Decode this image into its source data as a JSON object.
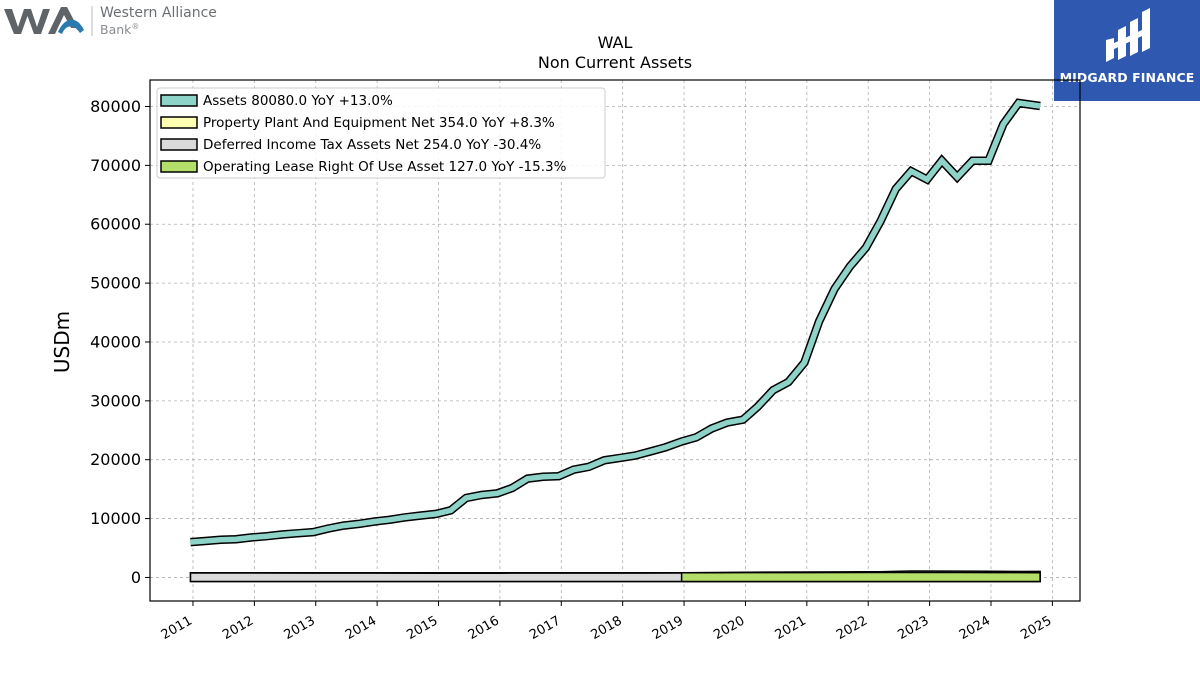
{
  "header": {
    "company_line1": "Western Alliance",
    "company_line2": "Bank",
    "company_mark": "®"
  },
  "badge": {
    "text": "MIDGARD FINANCE",
    "color": "#2f58b0"
  },
  "chart_data": {
    "type": "line",
    "title": "WAL",
    "subtitle": "Non Current  Assets",
    "ylabel": "USDm",
    "xlabel": "",
    "ylim": [
      -4000,
      84500
    ],
    "xlim": [
      2010.3,
      2025.45
    ],
    "yticks": [
      0,
      10000,
      20000,
      30000,
      40000,
      50000,
      60000,
      70000,
      80000
    ],
    "xticks": [
      2011,
      2012,
      2013,
      2014,
      2015,
      2016,
      2017,
      2018,
      2019,
      2020,
      2021,
      2022,
      2023,
      2024,
      2025
    ],
    "grid": true,
    "legend_position": "top-left",
    "series": [
      {
        "name": "Assets",
        "legend": "Assets  80080.0 YoY +13.0%",
        "color": "#8dd3c7",
        "points": [
          [
            2010.96,
            6000
          ],
          [
            2011.2,
            6200
          ],
          [
            2011.45,
            6400
          ],
          [
            2011.7,
            6500
          ],
          [
            2011.96,
            6800
          ],
          [
            2012.2,
            7000
          ],
          [
            2012.45,
            7300
          ],
          [
            2012.7,
            7500
          ],
          [
            2012.96,
            7700
          ],
          [
            2013.2,
            8300
          ],
          [
            2013.45,
            8800
          ],
          [
            2013.7,
            9100
          ],
          [
            2013.96,
            9500
          ],
          [
            2014.2,
            9800
          ],
          [
            2014.45,
            10200
          ],
          [
            2014.7,
            10500
          ],
          [
            2014.96,
            10800
          ],
          [
            2015.2,
            11400
          ],
          [
            2015.45,
            13500
          ],
          [
            2015.7,
            14000
          ],
          [
            2015.96,
            14300
          ],
          [
            2016.2,
            15200
          ],
          [
            2016.45,
            16800
          ],
          [
            2016.7,
            17100
          ],
          [
            2016.96,
            17200
          ],
          [
            2017.2,
            18300
          ],
          [
            2017.45,
            18800
          ],
          [
            2017.7,
            19900
          ],
          [
            2017.96,
            20300
          ],
          [
            2018.2,
            20700
          ],
          [
            2018.45,
            21400
          ],
          [
            2018.7,
            22100
          ],
          [
            2018.96,
            23100
          ],
          [
            2019.2,
            23800
          ],
          [
            2019.45,
            25300
          ],
          [
            2019.7,
            26300
          ],
          [
            2019.96,
            26800
          ],
          [
            2020.2,
            29000
          ],
          [
            2020.45,
            31800
          ],
          [
            2020.7,
            33200
          ],
          [
            2020.96,
            36500
          ],
          [
            2021.2,
            43500
          ],
          [
            2021.45,
            49000
          ],
          [
            2021.7,
            52800
          ],
          [
            2021.96,
            56000
          ],
          [
            2022.2,
            60500
          ],
          [
            2022.45,
            66000
          ],
          [
            2022.7,
            69000
          ],
          [
            2022.96,
            67600
          ],
          [
            2023.2,
            70800
          ],
          [
            2023.45,
            68000
          ],
          [
            2023.7,
            70800
          ],
          [
            2023.96,
            70800
          ],
          [
            2024.2,
            77000
          ],
          [
            2024.45,
            80600
          ],
          [
            2024.8,
            80080
          ]
        ]
      },
      {
        "name": "Property Plant And Equipment Net",
        "legend": "Property Plant And Equipment Net  354.0 YoY +8.3%",
        "color": "#ffffb3",
        "points": [
          [
            2010.96,
            110
          ],
          [
            2012.0,
            112
          ],
          [
            2013.0,
            115
          ],
          [
            2014.0,
            117
          ],
          [
            2015.0,
            120
          ],
          [
            2016.0,
            122
          ],
          [
            2017.0,
            125
          ],
          [
            2018.0,
            128
          ],
          [
            2018.96,
            130
          ],
          [
            2020.0,
            210
          ],
          [
            2021.0,
            240
          ],
          [
            2022.0,
            280
          ],
          [
            2022.7,
            320
          ],
          [
            2023.5,
            327
          ],
          [
            2024.0,
            335
          ],
          [
            2024.8,
            354
          ]
        ]
      },
      {
        "name": "Deferred Income Tax Assets Net",
        "legend": "Deferred Income Tax Assets Net  254.0 YoY -30.4%",
        "color": "#d9d9d9",
        "points": [
          [
            2010.96,
            80
          ],
          [
            2012.0,
            70
          ],
          [
            2013.0,
            60
          ],
          [
            2014.0,
            55
          ],
          [
            2015.0,
            50
          ],
          [
            2016.0,
            50
          ],
          [
            2017.0,
            55
          ],
          [
            2018.0,
            60
          ],
          [
            2018.96,
            70
          ],
          [
            2020.0,
            90
          ],
          [
            2021.0,
            130
          ],
          [
            2022.0,
            250
          ],
          [
            2022.7,
            420
          ],
          [
            2023.5,
            400
          ],
          [
            2024.0,
            365
          ],
          [
            2024.8,
            254
          ]
        ]
      },
      {
        "name": "Operating Lease Right Of Use Asset",
        "legend": "Operating Lease Right Of Use Asset  127.0 YoY -15.3%",
        "color": "#b3de69",
        "points": [
          [
            2018.96,
            120
          ],
          [
            2019.5,
            135
          ],
          [
            2020.0,
            140
          ],
          [
            2021.0,
            150
          ],
          [
            2022.0,
            160
          ],
          [
            2022.7,
            170
          ],
          [
            2023.5,
            165
          ],
          [
            2024.0,
            150
          ],
          [
            2024.8,
            127
          ]
        ]
      }
    ]
  }
}
